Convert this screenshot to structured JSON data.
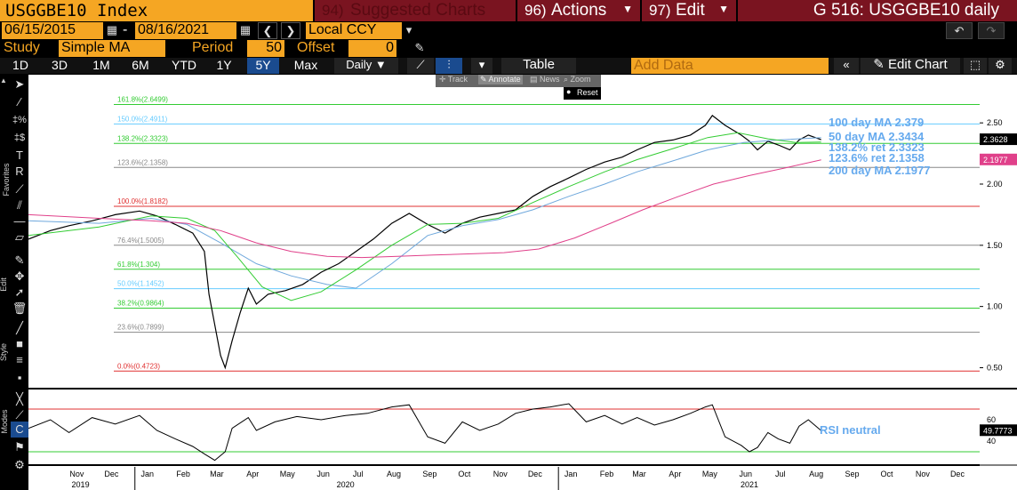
{
  "header": {
    "ticker": "USGGBE10 Index",
    "suggested_num": "94)",
    "suggested_label": "Suggested Charts",
    "actions_num": "96)",
    "actions_label": "Actions",
    "edit_num": "97)",
    "edit_label": "Edit",
    "title": "G 516: USGGBE10 daily"
  },
  "row2": {
    "start_date": "06/15/2015",
    "dash": "-",
    "end_date": "08/16/2021",
    "currency": "Local CCY"
  },
  "row3": {
    "study_label": "Study",
    "study_value": "Simple MA",
    "period_label": "Period",
    "period_value": "50",
    "offset_label": "Offset",
    "offset_value": "0"
  },
  "row4": {
    "ranges": [
      "1D",
      "3D",
      "1M",
      "6M",
      "YTD",
      "1Y",
      "5Y",
      "Max"
    ],
    "active_range": "5Y",
    "frequency": "Daily",
    "table_label": "Table",
    "add_data_placeholder": "Add Data",
    "edit_chart_label": "Edit Chart"
  },
  "toolbar_popup": {
    "track": "Track",
    "annotate": "Annotate",
    "news": "News",
    "zoom": "Zoom",
    "reset": "Reset"
  },
  "side_labels": {
    "favorites": "Favorites",
    "edit": "Edit",
    "style": "Style",
    "modes": "Modes"
  },
  "colors": {
    "price": "#000000",
    "ma100": "#6fa8dc",
    "ma50": "#33cc33",
    "ma200": "#e0408a",
    "fib_red": "#e03030",
    "fib_green": "#33cc33",
    "fib_cyan": "#66ccff",
    "fib_gray": "#888888",
    "label_blue": "#66aaee"
  },
  "legend": {
    "ma100": "100 day MA 2.379",
    "ma50": "50 day MA 2.3434",
    "ret1382": "138.2% ret 2.3323",
    "ret1236": "123.6% ret 2.1358",
    "ma200": "200 day MA 2.1977",
    "rsi": "RSI neutral"
  },
  "fib_levels": [
    {
      "label": "161.8%(2.6499)",
      "value": 2.6499,
      "color": "#33cc33"
    },
    {
      "label": "150.0%(2.4911)",
      "value": 2.4911,
      "color": "#66ccff"
    },
    {
      "label": "138.2%(2.3323)",
      "value": 2.3323,
      "color": "#33cc33"
    },
    {
      "label": "123.6%(2.1358)",
      "value": 2.1358,
      "color": "#888888"
    },
    {
      "label": "100.0%(1.8182)",
      "value": 1.8182,
      "color": "#e03030"
    },
    {
      "label": "76.4%(1.5005)",
      "value": 1.5005,
      "color": "#888888"
    },
    {
      "label": "61.8%(1.304)",
      "value": 1.304,
      "color": "#33cc33"
    },
    {
      "label": "50.0%(1.1452)",
      "value": 1.1452,
      "color": "#66ccff"
    },
    {
      "label": "38.2%(0.9864)",
      "value": 0.9864,
      "color": "#33cc33"
    },
    {
      "label": "23.6%(0.7899)",
      "value": 0.7899,
      "color": "#888888"
    },
    {
      "label": "0.0%(0.4723)",
      "value": 0.4723,
      "color": "#e03030"
    }
  ],
  "y_ticks": [
    "2.50",
    "2.00",
    "1.50",
    "1.00",
    "0.50"
  ],
  "y_tick_values": [
    2.5,
    2.0,
    1.5,
    1.0,
    0.5
  ],
  "price_badge": "2.3628",
  "ma200_badge": "2.1977",
  "rsi_ticks": [
    "60",
    "40"
  ],
  "rsi_tick_values": [
    60,
    40
  ],
  "rsi_badge": "49.7773",
  "months": [
    "Nov",
    "Dec",
    "Jan",
    "Feb",
    "Mar",
    "Apr",
    "May",
    "Jun",
    "Jul",
    "Aug",
    "Sep",
    "Oct",
    "Nov",
    "Dec",
    "Jan",
    "Feb",
    "Mar",
    "Apr",
    "May",
    "Jun",
    "Jul",
    "Aug",
    "Sep",
    "Oct",
    "Nov",
    "Dec"
  ],
  "years": [
    "2019",
    "2020",
    "2021"
  ],
  "chart_data": {
    "type": "line",
    "title": "USGGBE10 daily",
    "ylim": [
      0.38,
      2.85
    ],
    "x_range": [
      "2019-10-01",
      "2021-12-31"
    ],
    "series": [
      {
        "name": "USGGBE10 Index",
        "values": [
          [
            "2019-10-01",
            1.55
          ],
          [
            "2019-10-20",
            1.62
          ],
          [
            "2019-11-05",
            1.66
          ],
          [
            "2019-11-25",
            1.7
          ],
          [
            "2019-12-15",
            1.75
          ],
          [
            "2020-01-05",
            1.78
          ],
          [
            "2020-01-20",
            1.74
          ],
          [
            "2020-02-05",
            1.67
          ],
          [
            "2020-02-20",
            1.6
          ],
          [
            "2020-03-01",
            1.45
          ],
          [
            "2020-03-05",
            1.1
          ],
          [
            "2020-03-10",
            0.85
          ],
          [
            "2020-03-15",
            0.6
          ],
          [
            "2020-03-19",
            0.5
          ],
          [
            "2020-03-25",
            0.72
          ],
          [
            "2020-04-01",
            0.95
          ],
          [
            "2020-04-08",
            1.15
          ],
          [
            "2020-04-15",
            1.02
          ],
          [
            "2020-04-25",
            1.1
          ],
          [
            "2020-05-10",
            1.13
          ],
          [
            "2020-05-25",
            1.18
          ],
          [
            "2020-06-10",
            1.28
          ],
          [
            "2020-06-25",
            1.35
          ],
          [
            "2020-07-10",
            1.45
          ],
          [
            "2020-07-25",
            1.55
          ],
          [
            "2020-08-10",
            1.68
          ],
          [
            "2020-08-25",
            1.76
          ],
          [
            "2020-09-10",
            1.67
          ],
          [
            "2020-09-25",
            1.6
          ],
          [
            "2020-10-10",
            1.68
          ],
          [
            "2020-10-25",
            1.73
          ],
          [
            "2020-11-10",
            1.76
          ],
          [
            "2020-11-25",
            1.79
          ],
          [
            "2020-12-10",
            1.9
          ],
          [
            "2020-12-25",
            1.98
          ],
          [
            "2021-01-10",
            2.05
          ],
          [
            "2021-01-25",
            2.12
          ],
          [
            "2021-02-10",
            2.18
          ],
          [
            "2021-02-25",
            2.22
          ],
          [
            "2021-03-10",
            2.28
          ],
          [
            "2021-03-25",
            2.34
          ],
          [
            "2021-04-10",
            2.36
          ],
          [
            "2021-04-25",
            2.4
          ],
          [
            "2021-05-08",
            2.48
          ],
          [
            "2021-05-14",
            2.56
          ],
          [
            "2021-05-25",
            2.48
          ],
          [
            "2021-06-08",
            2.4
          ],
          [
            "2021-06-15",
            2.35
          ],
          [
            "2021-06-22",
            2.28
          ],
          [
            "2021-07-01",
            2.35
          ],
          [
            "2021-07-10",
            2.32
          ],
          [
            "2021-07-20",
            2.28
          ],
          [
            "2021-07-28",
            2.36
          ],
          [
            "2021-08-05",
            2.4
          ],
          [
            "2021-08-16",
            2.3628
          ]
        ]
      },
      {
        "name": "100 day MA",
        "values": [
          [
            "2019-10-01",
            1.7
          ],
          [
            "2019-12-01",
            1.68
          ],
          [
            "2020-01-15",
            1.72
          ],
          [
            "2020-02-15",
            1.67
          ],
          [
            "2020-03-15",
            1.52
          ],
          [
            "2020-04-15",
            1.35
          ],
          [
            "2020-05-15",
            1.25
          ],
          [
            "2020-06-15",
            1.18
          ],
          [
            "2020-07-10",
            1.15
          ],
          [
            "2020-08-10",
            1.35
          ],
          [
            "2020-09-10",
            1.58
          ],
          [
            "2020-10-10",
            1.66
          ],
          [
            "2020-11-10",
            1.71
          ],
          [
            "2020-12-10",
            1.79
          ],
          [
            "2021-01-10",
            1.9
          ],
          [
            "2021-02-10",
            2.0
          ],
          [
            "2021-03-10",
            2.1
          ],
          [
            "2021-04-10",
            2.19
          ],
          [
            "2021-05-10",
            2.28
          ],
          [
            "2021-06-10",
            2.34
          ],
          [
            "2021-07-10",
            2.36
          ],
          [
            "2021-08-16",
            2.379
          ]
        ]
      },
      {
        "name": "50 day MA",
        "values": [
          [
            "2019-10-01",
            1.58
          ],
          [
            "2019-12-01",
            1.65
          ],
          [
            "2020-01-15",
            1.74
          ],
          [
            "2020-02-15",
            1.72
          ],
          [
            "2020-03-10",
            1.62
          ],
          [
            "2020-03-30",
            1.4
          ],
          [
            "2020-04-20",
            1.16
          ],
          [
            "2020-05-15",
            1.05
          ],
          [
            "2020-06-10",
            1.12
          ],
          [
            "2020-07-10",
            1.3
          ],
          [
            "2020-08-10",
            1.5
          ],
          [
            "2020-09-10",
            1.67
          ],
          [
            "2020-10-10",
            1.68
          ],
          [
            "2020-11-10",
            1.72
          ],
          [
            "2020-12-10",
            1.85
          ],
          [
            "2021-01-10",
            1.98
          ],
          [
            "2021-02-10",
            2.1
          ],
          [
            "2021-03-10",
            2.2
          ],
          [
            "2021-04-10",
            2.29
          ],
          [
            "2021-05-10",
            2.38
          ],
          [
            "2021-06-05",
            2.42
          ],
          [
            "2021-07-01",
            2.37
          ],
          [
            "2021-07-25",
            2.34
          ],
          [
            "2021-08-16",
            2.3434
          ]
        ]
      },
      {
        "name": "200 day MA",
        "values": [
          [
            "2019-10-01",
            1.75
          ],
          [
            "2019-12-01",
            1.72
          ],
          [
            "2020-01-15",
            1.7
          ],
          [
            "2020-02-15",
            1.68
          ],
          [
            "2020-03-15",
            1.62
          ],
          [
            "2020-04-15",
            1.52
          ],
          [
            "2020-05-15",
            1.45
          ],
          [
            "2020-06-15",
            1.41
          ],
          [
            "2020-07-15",
            1.4
          ],
          [
            "2020-08-15",
            1.41
          ],
          [
            "2020-09-15",
            1.42
          ],
          [
            "2020-10-15",
            1.43
          ],
          [
            "2020-11-15",
            1.44
          ],
          [
            "2020-12-15",
            1.47
          ],
          [
            "2021-01-15",
            1.56
          ],
          [
            "2021-02-15",
            1.68
          ],
          [
            "2021-03-15",
            1.79
          ],
          [
            "2021-04-15",
            1.9
          ],
          [
            "2021-05-15",
            2.0
          ],
          [
            "2021-06-15",
            2.07
          ],
          [
            "2021-07-15",
            2.13
          ],
          [
            "2021-08-16",
            2.1977
          ]
        ]
      }
    ],
    "rsi": {
      "ylim": [
        20,
        85
      ],
      "bands": [
        70,
        30
      ],
      "values": [
        [
          "2019-10-01",
          52
        ],
        [
          "2019-10-20",
          60
        ],
        [
          "2019-11-05",
          48
        ],
        [
          "2019-11-25",
          62
        ],
        [
          "2019-12-15",
          56
        ],
        [
          "2020-01-05",
          64
        ],
        [
          "2020-01-20",
          50
        ],
        [
          "2020-02-05",
          42
        ],
        [
          "2020-02-20",
          35
        ],
        [
          "2020-03-01",
          28
        ],
        [
          "2020-03-10",
          22
        ],
        [
          "2020-03-19",
          30
        ],
        [
          "2020-03-25",
          52
        ],
        [
          "2020-04-08",
          62
        ],
        [
          "2020-04-15",
          50
        ],
        [
          "2020-05-01",
          58
        ],
        [
          "2020-05-20",
          63
        ],
        [
          "2020-06-10",
          60
        ],
        [
          "2020-07-01",
          64
        ],
        [
          "2020-07-20",
          66
        ],
        [
          "2020-08-10",
          72
        ],
        [
          "2020-08-25",
          74
        ],
        [
          "2020-09-10",
          44
        ],
        [
          "2020-09-25",
          38
        ],
        [
          "2020-10-10",
          58
        ],
        [
          "2020-10-25",
          50
        ],
        [
          "2020-11-10",
          56
        ],
        [
          "2020-11-25",
          66
        ],
        [
          "2020-12-10",
          70
        ],
        [
          "2020-12-25",
          72
        ],
        [
          "2021-01-10",
          75
        ],
        [
          "2021-01-25",
          58
        ],
        [
          "2021-02-10",
          64
        ],
        [
          "2021-02-25",
          56
        ],
        [
          "2021-03-10",
          62
        ],
        [
          "2021-03-25",
          55
        ],
        [
          "2021-04-10",
          60
        ],
        [
          "2021-04-25",
          66
        ],
        [
          "2021-05-08",
          72
        ],
        [
          "2021-05-14",
          74
        ],
        [
          "2021-05-25",
          44
        ],
        [
          "2021-06-08",
          36
        ],
        [
          "2021-06-15",
          30
        ],
        [
          "2021-06-22",
          34
        ],
        [
          "2021-07-01",
          48
        ],
        [
          "2021-07-10",
          42
        ],
        [
          "2021-07-20",
          38
        ],
        [
          "2021-07-28",
          54
        ],
        [
          "2021-08-05",
          60
        ],
        [
          "2021-08-16",
          49.7773
        ]
      ]
    }
  }
}
